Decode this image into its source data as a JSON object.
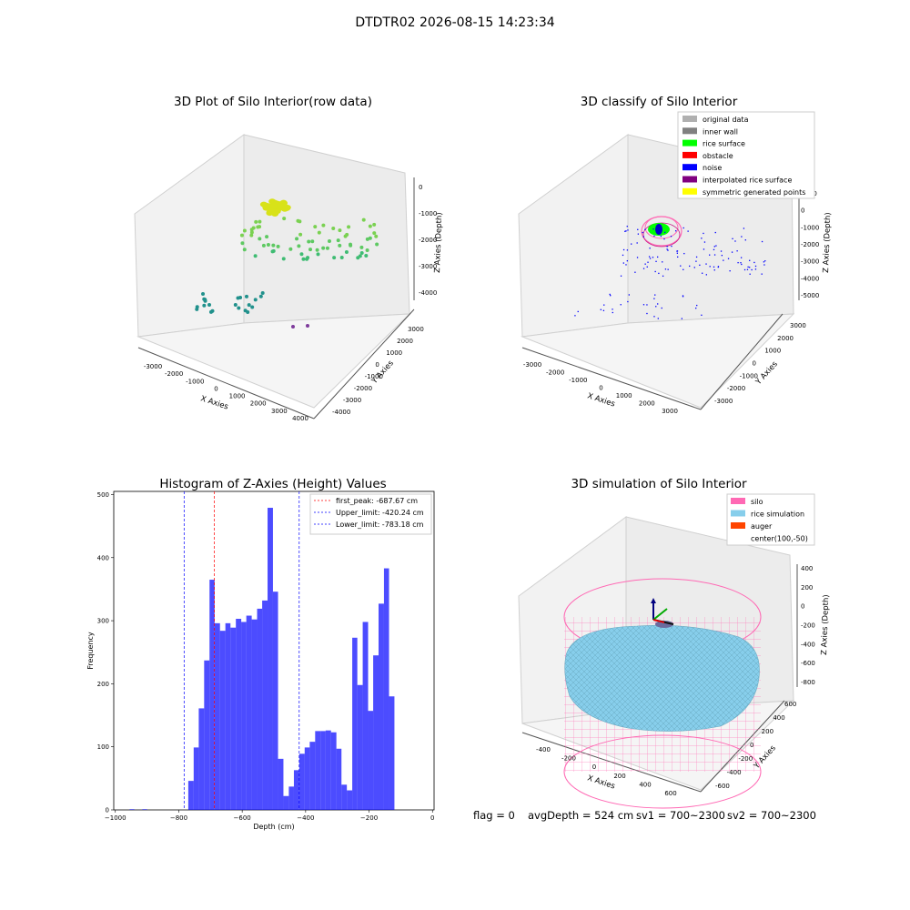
{
  "figure": {
    "suptitle": "DTDTR02 2026-08-15 14:23:34"
  },
  "chart_data": [
    {
      "type": "scatter",
      "title": "3D Plot of Silo Interior(row data)",
      "xlabel": "X Axies",
      "ylabel": "Y Axies",
      "zlabel": "Z Axies (Depth)",
      "x_ticks": [
        "-3000",
        "-2000",
        "-1000",
        "0",
        "1000",
        "2000",
        "3000",
        "4000"
      ],
      "y_ticks": [
        "-4000",
        "-3000",
        "-2000",
        "-1000",
        "0",
        "1000",
        "2000",
        "3000"
      ],
      "z_ticks": [
        "0",
        "-1000",
        "-2000",
        "-3000",
        "-4000"
      ],
      "colormap": "viridis (colored by depth)"
    },
    {
      "type": "scatter",
      "title": "3D classify of Silo Interior",
      "xlabel": "X Axies",
      "ylabel": "Y Axies",
      "zlabel": "Z Axies (Depth)",
      "x_ticks": [
        "-3000",
        "-2000",
        "-1000",
        "0",
        "1000",
        "2000",
        "3000"
      ],
      "y_ticks": [
        "-3000",
        "-2000",
        "-1000",
        "0",
        "1000",
        "2000",
        "3000"
      ],
      "z_ticks": [
        "1000",
        "0",
        "-1000",
        "-2000",
        "-3000",
        "-4000",
        "-5000"
      ],
      "legend_position": "top-right",
      "legend": [
        {
          "label": "original data",
          "color": "#b0b0b0"
        },
        {
          "label": "inner wall",
          "color": "#808080"
        },
        {
          "label": "rice surface",
          "color": "#00ff00"
        },
        {
          "label": "obstacle",
          "color": "#ff0000"
        },
        {
          "label": "noise",
          "color": "#0000ff"
        },
        {
          "label": "interpolated rice surface",
          "color": "#800080"
        },
        {
          "label": "symmetric generated points",
          "color": "#ffff00"
        }
      ]
    },
    {
      "type": "bar",
      "title": "Histogram of Z-Axies (Height) Values",
      "xlabel": "Depth (cm)",
      "ylabel": "Frequency",
      "xlim": [
        -1005,
        5
      ],
      "ylim": [
        0,
        505
      ],
      "x_ticks": [
        -1000,
        -800,
        -600,
        -400,
        -200,
        0
      ],
      "y_ticks": [
        0,
        100,
        200,
        300,
        400,
        500
      ],
      "bar_color": "#0000ff",
      "bins": [
        {
          "x0": -955,
          "x1": -940,
          "count": 1
        },
        {
          "x0": -915,
          "x1": -900,
          "count": 1
        },
        {
          "x0": -770,
          "x1": -753,
          "count": 46
        },
        {
          "x0": -753,
          "x1": -737,
          "count": 99
        },
        {
          "x0": -737,
          "x1": -720,
          "count": 161
        },
        {
          "x0": -720,
          "x1": -703,
          "count": 237
        },
        {
          "x0": -703,
          "x1": -687,
          "count": 365
        },
        {
          "x0": -687,
          "x1": -670,
          "count": 296
        },
        {
          "x0": -670,
          "x1": -653,
          "count": 284
        },
        {
          "x0": -653,
          "x1": -637,
          "count": 296
        },
        {
          "x0": -637,
          "x1": -620,
          "count": 289
        },
        {
          "x0": -620,
          "x1": -603,
          "count": 303
        },
        {
          "x0": -603,
          "x1": -587,
          "count": 298
        },
        {
          "x0": -587,
          "x1": -570,
          "count": 308
        },
        {
          "x0": -570,
          "x1": -553,
          "count": 302
        },
        {
          "x0": -553,
          "x1": -537,
          "count": 319
        },
        {
          "x0": -537,
          "x1": -520,
          "count": 332
        },
        {
          "x0": -520,
          "x1": -503,
          "count": 479
        },
        {
          "x0": -503,
          "x1": -487,
          "count": 346
        },
        {
          "x0": -487,
          "x1": -470,
          "count": 81
        },
        {
          "x0": -470,
          "x1": -453,
          "count": 22
        },
        {
          "x0": -453,
          "x1": -437,
          "count": 37
        },
        {
          "x0": -437,
          "x1": -420,
          "count": 63
        },
        {
          "x0": -420,
          "x1": -403,
          "count": 89
        },
        {
          "x0": -403,
          "x1": -387,
          "count": 99
        },
        {
          "x0": -387,
          "x1": -370,
          "count": 108
        },
        {
          "x0": -370,
          "x1": -353,
          "count": 125
        },
        {
          "x0": -353,
          "x1": -337,
          "count": 125
        },
        {
          "x0": -337,
          "x1": -320,
          "count": 126
        },
        {
          "x0": -320,
          "x1": -303,
          "count": 123
        },
        {
          "x0": -303,
          "x1": -287,
          "count": 97
        },
        {
          "x0": -287,
          "x1": -270,
          "count": 40
        },
        {
          "x0": -270,
          "x1": -253,
          "count": 31
        },
        {
          "x0": -253,
          "x1": -237,
          "count": 273
        },
        {
          "x0": -237,
          "x1": -220,
          "count": 198
        },
        {
          "x0": -220,
          "x1": -203,
          "count": 298
        },
        {
          "x0": -203,
          "x1": -187,
          "count": 157
        },
        {
          "x0": -187,
          "x1": -170,
          "count": 245
        },
        {
          "x0": -170,
          "x1": -153,
          "count": 327
        },
        {
          "x0": -153,
          "x1": -137,
          "count": 383
        },
        {
          "x0": -137,
          "x1": -120,
          "count": 180
        }
      ],
      "vlines": [
        {
          "x": -687.67,
          "label": "first_peak: -687.67 cm",
          "color": "#ff0000"
        },
        {
          "x": -420.24,
          "label": "Upper_limit: -420.24 cm",
          "color": "#0000ff"
        },
        {
          "x": -783.18,
          "label": "Lower_limit: -783.18 cm",
          "color": "#0000ff"
        }
      ],
      "legend_position": "top-right"
    },
    {
      "type": "surface",
      "title": "3D simulation of Silo Interior",
      "xlabel": "X Axies",
      "ylabel": "Y Axies",
      "zlabel": "Z Axies (Depth)",
      "x_ticks": [
        "-400",
        "-200",
        "0",
        "200",
        "400",
        "600"
      ],
      "y_ticks": [
        "-600",
        "-400",
        "-200",
        "0",
        "200",
        "400",
        "600"
      ],
      "z_ticks": [
        "400",
        "200",
        "0",
        "-200",
        "-400",
        "-600",
        "-800"
      ],
      "legend_position": "top-right",
      "legend": [
        {
          "label": "silo",
          "color": "#ff69b4"
        },
        {
          "label": "rice simulation",
          "color": "#87ceeb"
        },
        {
          "label": "auger",
          "color": "#ff4500"
        },
        {
          "label": "center(100,-50)",
          "color": ""
        }
      ]
    }
  ],
  "footer": {
    "flag": "flag = 0",
    "avg_depth": "avgDepth = 524 cm",
    "sv1": "sv1 = 700~2300",
    "sv2": "sv2 = 700~2300"
  }
}
